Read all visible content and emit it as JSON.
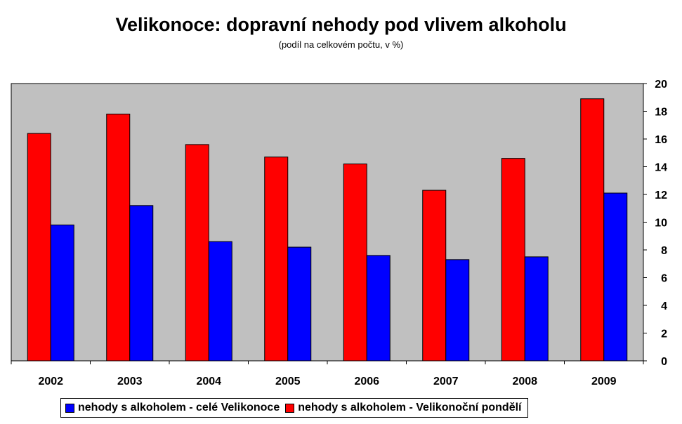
{
  "chart_data": {
    "type": "bar",
    "title": "Velikonoce: dopravní nehody pod vlivem alkoholu",
    "subtitle": "(podíl na celkovém počtu, v %)",
    "categories": [
      "2002",
      "2003",
      "2004",
      "2005",
      "2006",
      "2007",
      "2008",
      "2009"
    ],
    "series": [
      {
        "name": "nehody s alkoholem - Velikonoční pondělí",
        "color": "#ff0000",
        "values": [
          16.4,
          17.8,
          15.6,
          14.7,
          14.2,
          12.3,
          14.6,
          18.9
        ]
      },
      {
        "name": "nehody s alkoholem - celé Velikonoce",
        "color": "#0000ff",
        "values": [
          9.8,
          11.2,
          8.6,
          8.2,
          7.6,
          7.3,
          7.5,
          12.1
        ]
      }
    ],
    "legend_order": [
      1,
      0
    ],
    "ylim": [
      0,
      20
    ],
    "yticks": [
      "0",
      "2",
      "4",
      "6",
      "8",
      "10",
      "12",
      "14",
      "16",
      "18",
      "20"
    ],
    "y_axis_side": "right",
    "grid": false,
    "plot_background": "#c0c0c0",
    "legend_position": "bottom"
  }
}
